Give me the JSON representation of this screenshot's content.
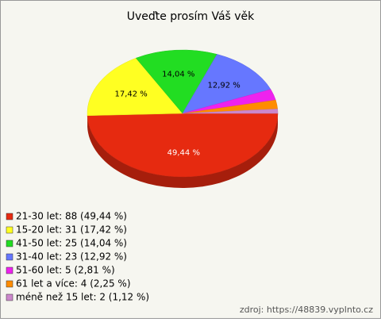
{
  "chart_data": {
    "type": "pie",
    "title": "Uveďte prosím Váš věk",
    "categories": [
      "21-30 let: 88 (49,44 %)",
      "15-20 let: 31 (17,42 %)",
      "41-50 let: 25 (14,04 %)",
      "31-40 let: 23 (12,92 %)",
      "51-60 let: 5 (2,81 %)",
      "61 let a více: 4 (2,25 %)",
      "méně než 15 let: 2 (1,12 %)"
    ],
    "values": [
      49.44,
      17.42,
      14.04,
      12.92,
      2.81,
      2.25,
      1.12
    ],
    "value_labels": [
      "49,44 %",
      "17,42 %",
      "14,04 %",
      "12,92 %",
      null,
      null,
      null
    ],
    "colors": [
      "#e62a10",
      "#ffff22",
      "#22dd22",
      "#6677ff",
      "#ee22ee",
      "#ff8c00",
      "#cc88cc"
    ],
    "source": "zdroj: https://48839.vyplnto.cz"
  }
}
